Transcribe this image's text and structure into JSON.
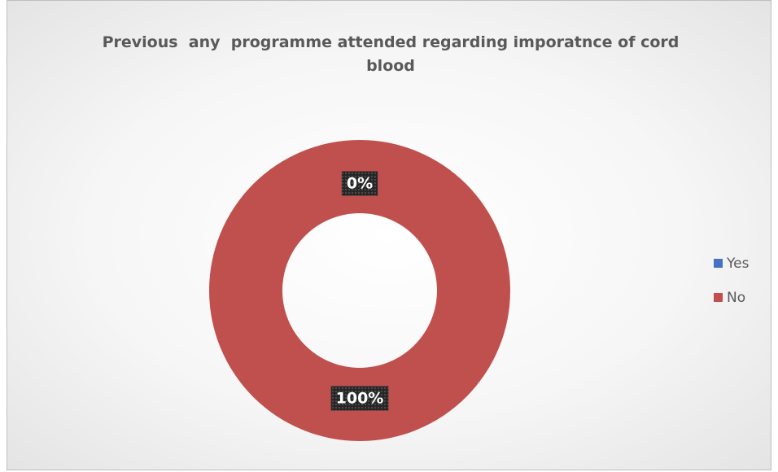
{
  "chart_data": {
    "type": "doughnut",
    "title": "Previous  any  programme attended regarding imporatnce of cord blood",
    "categories": [
      "Yes",
      "No"
    ],
    "values": [
      0,
      100
    ],
    "value_labels": [
      "0%",
      "100%"
    ],
    "colors": [
      "#4472c4",
      "#c0504d"
    ],
    "legend": "right"
  }
}
